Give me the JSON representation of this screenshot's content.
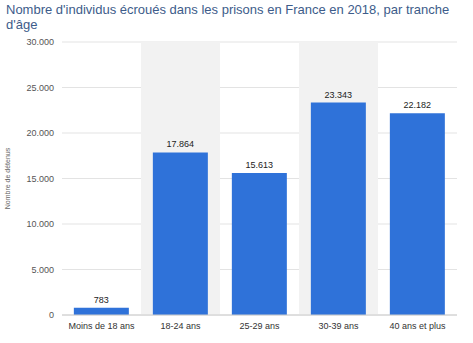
{
  "chart_data": {
    "type": "bar",
    "title": "Nombre d'individus écroués dans les prisons en France en 2018, par tranche d'âge",
    "y_label": "Nombre de détenus",
    "categories": [
      "Moins de 18 ans",
      "18-24 ans",
      "25-29 ans",
      "30-39 ans",
      "40 ans et plus"
    ],
    "values": [
      783,
      17864,
      15613,
      23343,
      22182
    ],
    "value_labels": [
      "783",
      "17.864",
      "15.613",
      "23.343",
      "22.182"
    ],
    "color": "#2f72d9",
    "ylim": [
      0,
      30000
    ],
    "yticks": [
      0,
      {
        "value": 5000,
        "label": "5.000"
      },
      {
        "value": 10000,
        "label": "10.000"
      },
      {
        "value": 15000,
        "label": "15.000"
      },
      {
        "value": 20000,
        "label": "20.000"
      },
      {
        "value": 25000,
        "label": "25.000"
      },
      {
        "value": 30000,
        "label": "30.000"
      }
    ],
    "grid": true,
    "data_labels": true
  }
}
